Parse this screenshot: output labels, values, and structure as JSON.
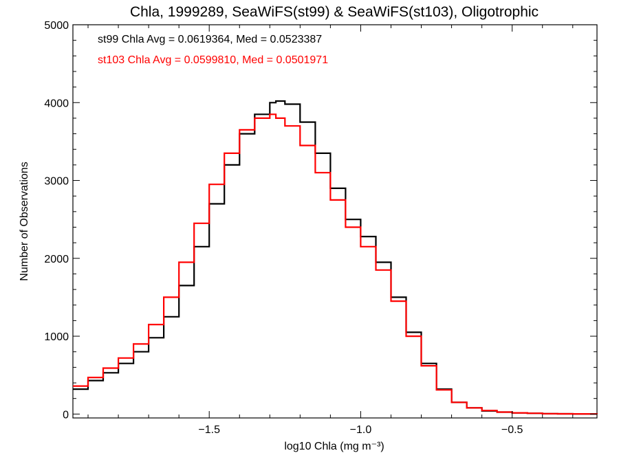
{
  "chart_data": {
    "type": "line",
    "title": "Chla, 1999289, SeaWiFS(st99) & SeaWiFS(st103), Oligotrophic",
    "xlabel": "log10 Chla (mg m⁻³)",
    "ylabel": "Number of Observations",
    "xlim": [
      -1.95,
      -0.22
    ],
    "ylim": [
      -50,
      5000
    ],
    "x_ticks": [
      -1.5,
      -1.0,
      -0.5
    ],
    "x_tick_labels": [
      "−1.5",
      "−1.0",
      "−0.5"
    ],
    "y_ticks": [
      0,
      1000,
      2000,
      3000,
      4000,
      5000
    ],
    "y_tick_labels": [
      "0",
      "1000",
      "2000",
      "3000",
      "4000",
      "5000"
    ],
    "grid": false,
    "step": true,
    "annotations": [
      {
        "text": "st99 Chla Avg = 0.0619364, Med = 0.0523387",
        "color": "#000000"
      },
      {
        "text": "st103 Chla Avg = 0.0599810, Med = 0.0501971",
        "color": "#ff0000"
      }
    ],
    "series": [
      {
        "color": "#000000",
        "x": [
          -1.95,
          -1.9,
          -1.85,
          -1.8,
          -1.75,
          -1.7,
          -1.65,
          -1.6,
          -1.55,
          -1.5,
          -1.45,
          -1.4,
          -1.35,
          -1.3,
          -1.28,
          -1.25,
          -1.2,
          -1.15,
          -1.1,
          -1.05,
          -1.0,
          -0.95,
          -0.9,
          -0.85,
          -0.8,
          -0.75,
          -0.7,
          -0.65,
          -0.6,
          -0.55,
          -0.5,
          -0.45,
          -0.4,
          -0.35,
          -0.3,
          -0.25,
          -0.22
        ],
        "y": [
          320,
          430,
          530,
          650,
          800,
          980,
          1250,
          1650,
          2150,
          2700,
          3200,
          3600,
          3850,
          4000,
          4020,
          3980,
          3750,
          3350,
          2900,
          2500,
          2280,
          1950,
          1500,
          1050,
          650,
          320,
          150,
          80,
          40,
          25,
          15,
          10,
          5,
          3,
          2,
          1,
          0
        ]
      },
      {
        "color": "#ff0000",
        "x": [
          -1.95,
          -1.9,
          -1.85,
          -1.8,
          -1.75,
          -1.7,
          -1.65,
          -1.6,
          -1.55,
          -1.5,
          -1.45,
          -1.4,
          -1.35,
          -1.3,
          -1.28,
          -1.25,
          -1.2,
          -1.15,
          -1.1,
          -1.05,
          -1.0,
          -0.95,
          -0.9,
          -0.85,
          -0.8,
          -0.75,
          -0.7,
          -0.65,
          -0.6,
          -0.55,
          -0.5,
          -0.45,
          -0.4,
          -0.35,
          -0.3,
          -0.25,
          -0.22
        ],
        "y": [
          360,
          470,
          590,
          720,
          900,
          1150,
          1500,
          1950,
          2450,
          2950,
          3350,
          3650,
          3800,
          3850,
          3800,
          3700,
          3450,
          3100,
          2750,
          2400,
          2150,
          1850,
          1450,
          1000,
          620,
          310,
          150,
          80,
          45,
          25,
          15,
          10,
          5,
          3,
          2,
          1,
          0
        ]
      }
    ]
  }
}
